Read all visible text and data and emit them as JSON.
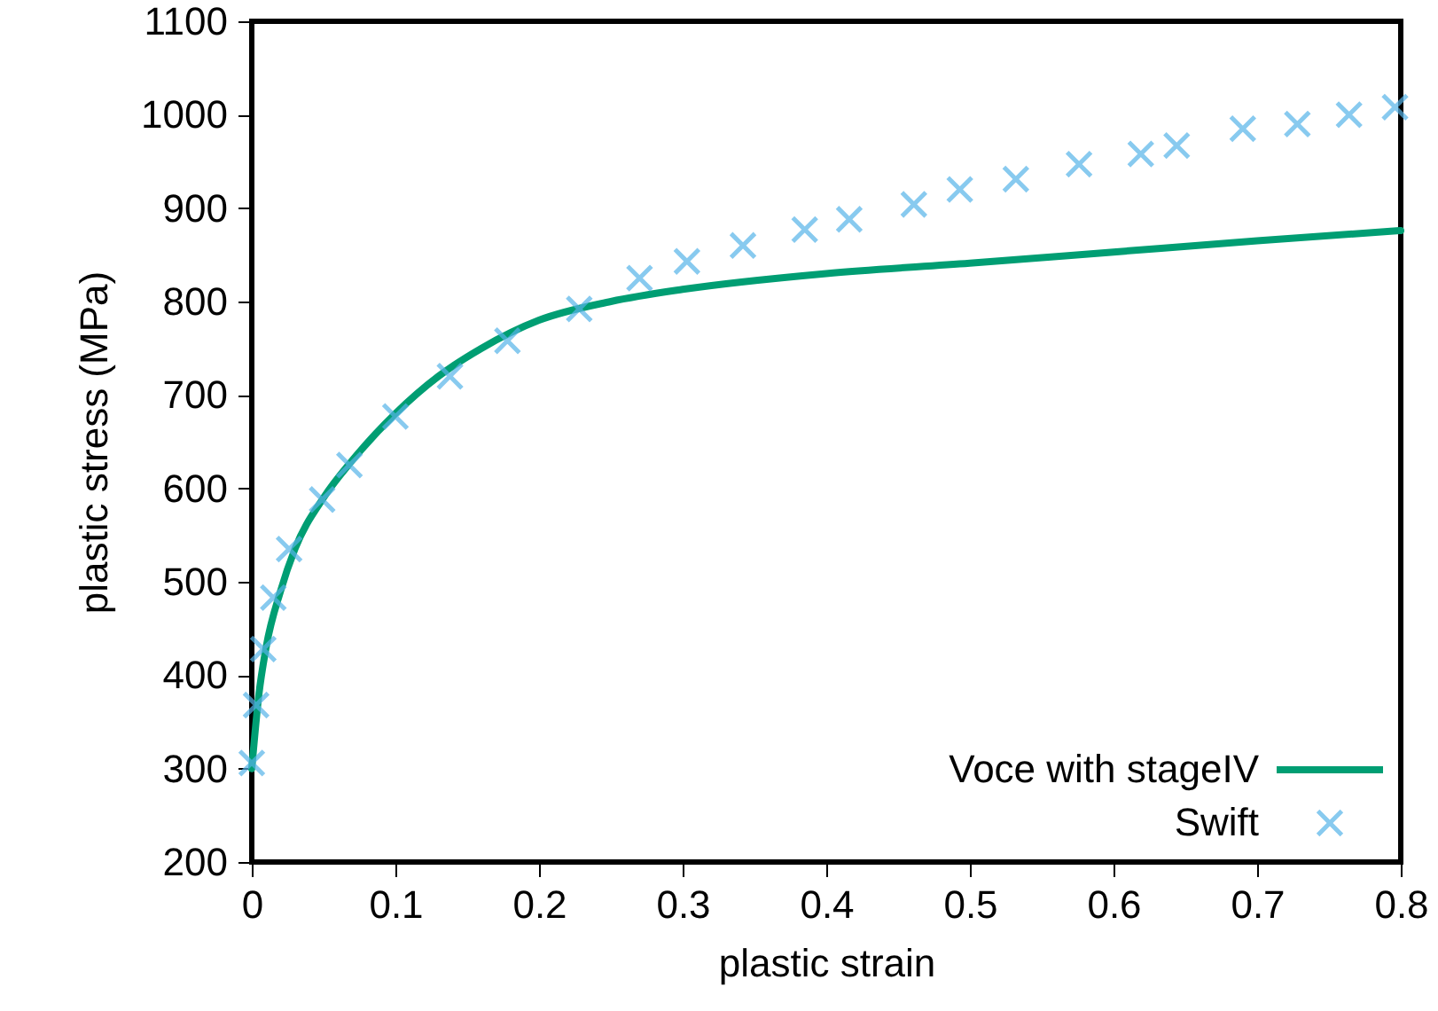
{
  "chart_data": {
    "type": "line",
    "xlabel": "plastic strain",
    "ylabel": "plastic stress (MPa)",
    "xlim": [
      0,
      0.8
    ],
    "ylim": [
      200,
      1100
    ],
    "xticks": [
      {
        "value": 0,
        "label": "0"
      },
      0.1,
      0.2,
      0.3,
      0.4,
      0.5,
      0.6,
      0.7,
      0.8
    ],
    "yticks": [
      200,
      300,
      400,
      500,
      600,
      700,
      800,
      900,
      1000,
      1100
    ],
    "grid": false,
    "legend": "bottom right",
    "series": [
      {
        "name": "Voce with stageIV",
        "type": "line",
        "color": "#009e73",
        "marker": "none",
        "line_style": "solid",
        "x": [
          0,
          0.005,
          0.01,
          0.02,
          0.03,
          0.05,
          0.07,
          0.1,
          0.13,
          0.16,
          0.2,
          0.25,
          0.3,
          0.4,
          0.5,
          0.6,
          0.7,
          0.8
        ],
        "values": [
          300,
          380,
          430,
          490,
          535,
          590,
          630,
          680,
          720,
          750,
          780,
          800,
          813,
          830,
          841,
          853,
          865,
          876
        ]
      },
      {
        "name": "Swift",
        "type": "scatter",
        "color": "#56b4e9",
        "marker": "cross",
        "x": [
          0,
          0.003,
          0.008,
          0.015,
          0.026,
          0.049,
          0.068,
          0.1,
          0.138,
          0.178,
          0.228,
          0.27,
          0.303,
          0.342,
          0.385,
          0.416,
          0.461,
          0.493,
          0.532,
          0.576,
          0.619,
          0.644,
          0.69,
          0.728,
          0.764,
          0.796
        ],
        "values": [
          306,
          368,
          428,
          483,
          535,
          588,
          625,
          677,
          720,
          758,
          792,
          825,
          843,
          860,
          877,
          888,
          904,
          920,
          931,
          947,
          958,
          967,
          985,
          990,
          1000,
          1008
        ]
      }
    ]
  }
}
